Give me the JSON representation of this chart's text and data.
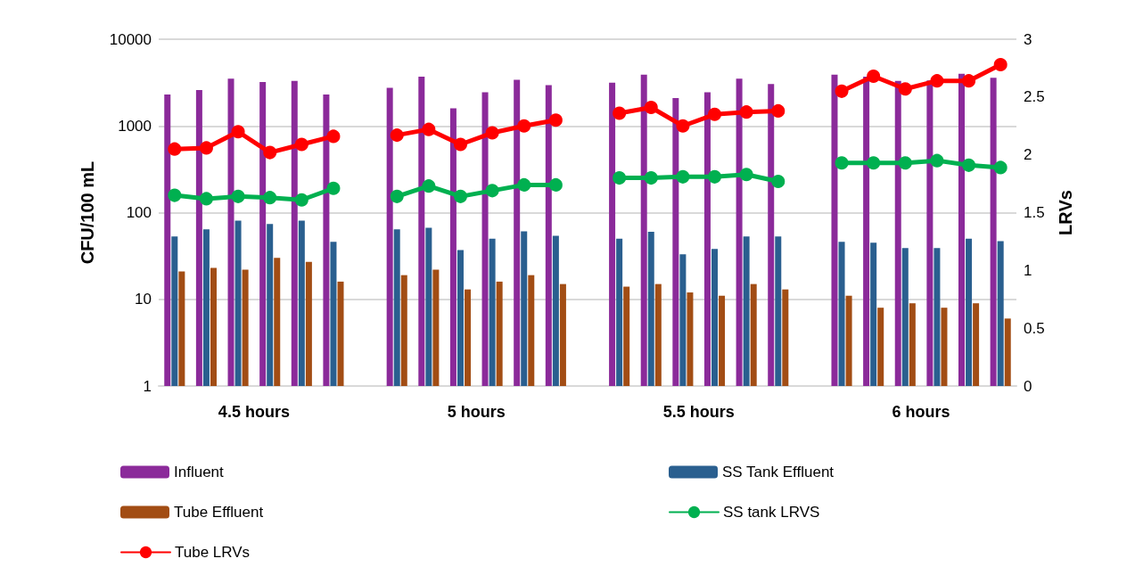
{
  "chart_data": {
    "type": "bar",
    "categories": [
      null,
      null,
      null,
      null,
      null,
      null,
      null,
      null,
      null,
      null,
      null,
      null,
      null,
      null,
      null,
      null,
      null,
      null,
      null,
      null,
      null,
      null,
      null,
      null,
      null,
      null,
      null
    ],
    "series": [
      {
        "name": "Influent",
        "color": "#8b2a9a",
        "values": [
          2300,
          2600,
          3500,
          3200,
          3300,
          2300,
          null,
          2750,
          3700,
          1600,
          2450,
          3400,
          2950,
          null,
          3150,
          3900,
          2100,
          2450,
          3500,
          3050,
          null,
          3900,
          3700,
          3300,
          3350,
          4000,
          3600
        ]
      },
      {
        "name": "SS Tank Effluent",
        "color": "#2a5f8f",
        "values": [
          53,
          64,
          81,
          74,
          81,
          46,
          null,
          64,
          67,
          37,
          50,
          61,
          54,
          null,
          50,
          60,
          33,
          38,
          53,
          53,
          null,
          46,
          45,
          39,
          39,
          50,
          47
        ]
      },
      {
        "name": "Tube Effluent",
        "color": "#a24d14",
        "values": [
          21,
          23,
          22,
          30,
          27,
          16,
          null,
          19,
          22,
          13,
          16,
          19,
          15,
          null,
          14,
          15,
          12,
          11,
          15,
          13,
          null,
          11,
          8,
          9,
          8,
          9,
          6
        ]
      },
      {
        "name": "SS tank LRVS",
        "type": "line",
        "axis": "y2",
        "color": "#00b050",
        "values": [
          1.65,
          1.62,
          1.64,
          1.63,
          1.61,
          1.71,
          null,
          1.64,
          1.73,
          1.64,
          1.69,
          1.74,
          1.74,
          null,
          1.8,
          1.8,
          1.81,
          1.81,
          1.83,
          1.77,
          null,
          1.93,
          1.93,
          1.93,
          1.95,
          1.91,
          1.89
        ]
      },
      {
        "name": "Tube LRVs",
        "type": "line",
        "axis": "y2",
        "color": "#ff0000",
        "values": [
          2.05,
          2.06,
          2.2,
          2.02,
          2.09,
          2.16,
          null,
          2.17,
          2.22,
          2.09,
          2.19,
          2.25,
          2.3,
          null,
          2.36,
          2.41,
          2.25,
          2.35,
          2.37,
          2.38,
          null,
          2.55,
          2.68,
          2.57,
          2.64,
          2.64,
          2.78
        ]
      }
    ],
    "ylabel": "CFU/100 mL",
    "y2label": "LRVs",
    "log": "y",
    "ylim": [
      1,
      10000
    ],
    "yticks": [
      1,
      10,
      100,
      1000,
      10000
    ],
    "y2lim": [
      0,
      3
    ],
    "y2ticks": [
      0,
      0.5,
      1,
      1.5,
      2,
      2.5,
      3
    ],
    "annotations": [
      "4.5 hours",
      "5 hours",
      "5.5 hours",
      "6 hours"
    ],
    "grid": "y",
    "legend": "bottom",
    "marker": "circle",
    "line_style": "solid"
  }
}
